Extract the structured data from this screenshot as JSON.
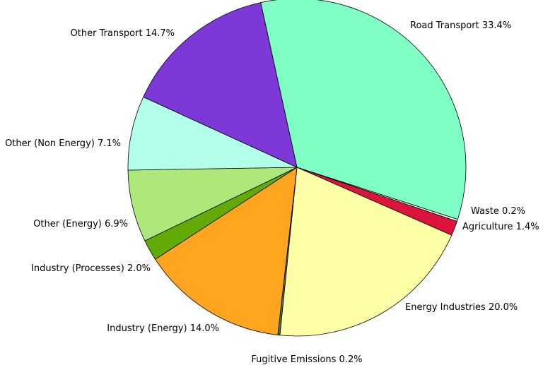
{
  "chart_data": {
    "type": "pie",
    "title": "",
    "slices": [
      {
        "label": "Road Transport",
        "value": 33.4,
        "text": "Road Transport 33.4%",
        "color": "#7fffc3"
      },
      {
        "label": "Waste",
        "value": 0.2,
        "text": "Waste 0.2%",
        "color": "#ffffff"
      },
      {
        "label": "Agriculture",
        "value": 1.4,
        "text": "Agriculture 1.4%",
        "color": "#dc143c"
      },
      {
        "label": "Energy Industries",
        "value": 20.0,
        "text": "Energy Industries 20.0%",
        "color": "#ffffa8"
      },
      {
        "label": "Fugitive Emissions",
        "value": 0.2,
        "text": "Fugitive Emissions 0.2%",
        "color": "#4a7f16"
      },
      {
        "label": "Industry (Energy)",
        "value": 14.0,
        "text": "Industry (Energy) 14.0%",
        "color": "#ffa520"
      },
      {
        "label": "Industry (Processes)",
        "value": 2.0,
        "text": "Industry (Processes) 2.0%",
        "color": "#62aa05"
      },
      {
        "label": "Other (Energy)",
        "value": 6.9,
        "text": "Other (Energy) 6.9%",
        "color": "#aee87a"
      },
      {
        "label": "Other (Non Energy)",
        "value": 7.1,
        "text": "Other (Non Energy) 7.1%",
        "color": "#b2ffea"
      },
      {
        "label": "Other Transport",
        "value": 14.7,
        "text": "Other Transport 14.7%",
        "color": "#7e38d8"
      }
    ]
  }
}
